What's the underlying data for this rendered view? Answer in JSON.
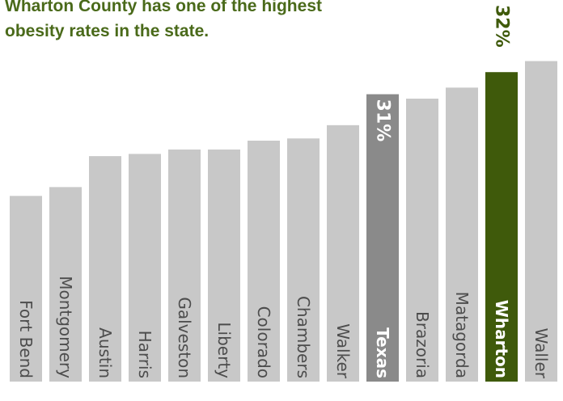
{
  "chart_data": {
    "type": "bar",
    "title": "Wharton County has one of the highest obesity rates in the state.",
    "categories": [
      "Fort Bend",
      "Montgomery",
      "Austin",
      "Harris",
      "Galveston",
      "Liberty",
      "Colorado",
      "Chambers",
      "Walker",
      "Texas",
      "Brazoria",
      "Matagorda",
      "Wharton",
      "Waller"
    ],
    "values": [
      26.4,
      26.8,
      28.2,
      28.3,
      28.5,
      28.5,
      28.9,
      29.0,
      29.6,
      31.0,
      30.8,
      31.3,
      32.0,
      32.5
    ],
    "ylim": [
      18,
      33.8
    ],
    "value_labels": {
      "Texas": "31%",
      "Wharton": "32%"
    },
    "colors": {
      "default_bar": "#c8c8c8",
      "state_bar": "#8a8a8a",
      "highlight_bar": "#3f5a0b",
      "default_text": "#4d4d4d",
      "highlight_text": "#ffffff",
      "highlight_value_text": "#3f5a0b",
      "state_value_text": "#ffffff",
      "title": "#4a6a1a"
    },
    "highlight": "Wharton",
    "state": "Texas"
  }
}
